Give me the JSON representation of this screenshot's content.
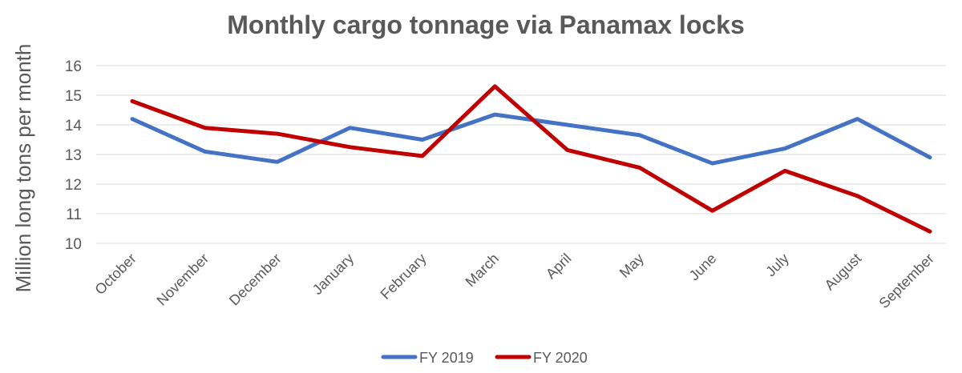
{
  "chart_data": {
    "type": "line",
    "title": "Monthly cargo tonnage via Panamax locks",
    "xlabel": "",
    "ylabel": "Million long tons per month",
    "categories": [
      "October",
      "November",
      "December",
      "January",
      "February",
      "March",
      "April",
      "May",
      "June",
      "July",
      "August",
      "September"
    ],
    "ylim": [
      10,
      16
    ],
    "yticks": [
      10,
      11,
      12,
      13,
      14,
      15,
      16
    ],
    "grid": true,
    "legend_position": "bottom",
    "series": [
      {
        "name": "FY 2019",
        "color": "#4472c4",
        "values": [
          14.2,
          13.1,
          12.75,
          13.9,
          13.5,
          14.35,
          14.0,
          13.65,
          12.7,
          13.2,
          14.2,
          12.9
        ]
      },
      {
        "name": "FY 2020",
        "color": "#c00000",
        "values": [
          14.8,
          13.9,
          13.7,
          13.25,
          12.95,
          15.3,
          13.15,
          12.55,
          11.1,
          12.45,
          11.6,
          10.4
        ]
      }
    ]
  }
}
